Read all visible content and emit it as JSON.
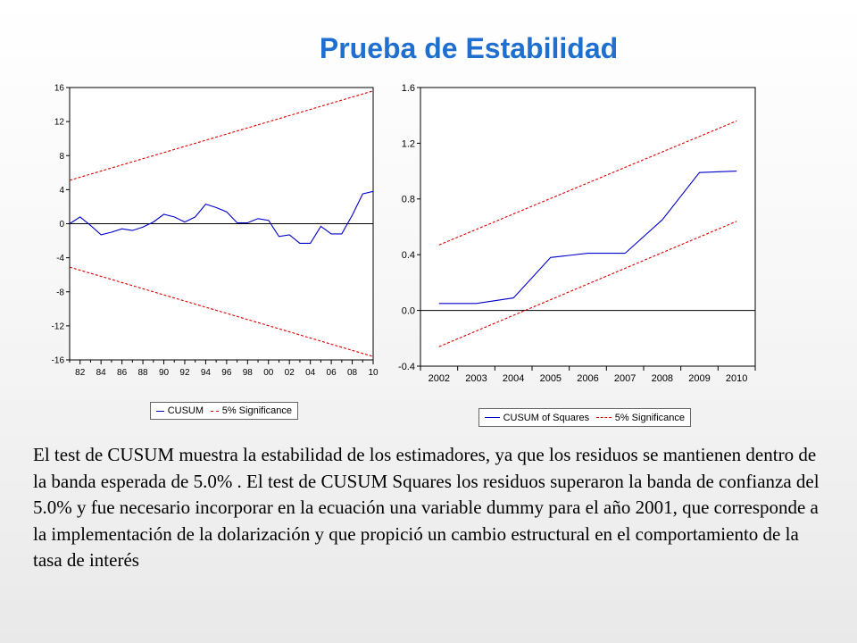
{
  "page": {
    "title": "Prueba de Estabilidad",
    "body_text": "El  test de CUSUM muestra  la estabilidad de los estimadores, ya que los residuos se mantienen  dentro de la banda esperada de 5.0% .   El  test de CUSUM Squares los residuos superaron la banda de confianza del 5.0%  y fue necesario incorporar en la ecuación una variable dummy para el año 2001, que corresponde a la implementación de la dolarización y que propició un cambio estructural en el comportamiento de la tasa de interés",
    "title_color": "#1f6fd1"
  },
  "chart_data": [
    {
      "type": "line",
      "x_ticks": [
        "82",
        "84",
        "86",
        "88",
        "90",
        "92",
        "94",
        "96",
        "98",
        "00",
        "02",
        "04",
        "06",
        "08",
        "10"
      ],
      "y_ticks": [
        "16",
        "12",
        "8",
        "4",
        "0",
        "-4",
        "-8",
        "-12",
        "-16"
      ],
      "ylim": [
        -16,
        16
      ],
      "xlim": [
        1981,
        2010
      ],
      "zero_line": true,
      "grid": false,
      "legend_position": "bottom",
      "legend": [
        "CUSUM",
        "5% Significance"
      ],
      "colors": {
        "series": "#0000cc",
        "bands": "#dd0000"
      },
      "series": [
        {
          "name": "CUSUM",
          "x": [
            1981,
            1982,
            1983,
            1984,
            1985,
            1986,
            1987,
            1988,
            1989,
            1990,
            1991,
            1992,
            1993,
            1994,
            1995,
            1996,
            1997,
            1998,
            1999,
            2000,
            2001,
            2002,
            2003,
            2004,
            2005,
            2006,
            2007,
            2008,
            2009,
            2010
          ],
          "y": [
            0.0,
            0.8,
            -0.2,
            -1.3,
            -1.0,
            -0.6,
            -0.8,
            -0.4,
            0.2,
            1.1,
            0.8,
            0.2,
            0.8,
            2.3,
            1.9,
            1.4,
            0.1,
            0.1,
            0.6,
            0.4,
            -1.5,
            -1.3,
            -2.3,
            -2.3,
            -0.3,
            -1.2,
            -1.2,
            1.0,
            3.5,
            3.8
          ]
        },
        {
          "name": "upper 5% band",
          "x": [
            1981,
            2010
          ],
          "y": [
            5.1,
            15.6
          ]
        },
        {
          "name": "lower 5% band",
          "x": [
            1981,
            2010
          ],
          "y": [
            -5.1,
            -15.6
          ]
        }
      ]
    },
    {
      "type": "line",
      "x_ticks": [
        "2002",
        "2003",
        "2004",
        "2005",
        "2006",
        "2007",
        "2008",
        "2009",
        "2010"
      ],
      "y_ticks": [
        "1.6",
        "1.2",
        "0.8",
        "0.4",
        "0.0",
        "-0.4"
      ],
      "ylim": [
        -0.4,
        1.6
      ],
      "xlim": [
        2002,
        2010
      ],
      "zero_line": true,
      "grid": false,
      "legend_position": "bottom",
      "legend": [
        "CUSUM of Squares",
        "5% Significance"
      ],
      "colors": {
        "series": "#0000cc",
        "bands": "#dd0000"
      },
      "series": [
        {
          "name": "CUSUM of Squares",
          "x": [
            2002,
            2003,
            2004,
            2005,
            2006,
            2007,
            2008,
            2009,
            2010
          ],
          "y": [
            0.05,
            0.05,
            0.09,
            0.38,
            0.41,
            0.41,
            0.65,
            0.99,
            1.0
          ]
        },
        {
          "name": "upper 5% band",
          "x": [
            2002,
            2010
          ],
          "y": [
            0.47,
            1.36
          ]
        },
        {
          "name": "lower 5% band",
          "x": [
            2002,
            2010
          ],
          "y": [
            -0.26,
            0.64
          ]
        }
      ]
    }
  ]
}
